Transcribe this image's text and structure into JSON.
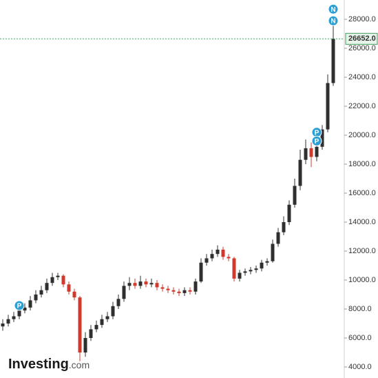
{
  "chart_data": {
    "type": "candlestick",
    "open": [
      6800,
      7000,
      7300,
      7500,
      7900,
      8100,
      8600,
      9000,
      9300,
      9800,
      10200,
      10300,
      9700,
      9200,
      8800,
      5000,
      6000,
      6600,
      6900,
      7300,
      7500,
      8200,
      8700,
      9600,
      9800,
      9600,
      9900,
      9700,
      9800,
      9500,
      9400,
      9300,
      9200,
      9100,
      9300,
      9200,
      9900,
      11200,
      11500,
      11800,
      12100,
      11600,
      11500,
      10100,
      10500,
      10600,
      10700,
      10800,
      11200,
      11300,
      12500,
      13300,
      14000,
      15200,
      16500,
      18300,
      19100,
      18500,
      19200,
      20400,
      23600
    ],
    "high": [
      7300,
      7600,
      7800,
      8200,
      8400,
      8900,
      9300,
      9600,
      10100,
      10500,
      10500,
      10400,
      9900,
      9400,
      8900,
      6400,
      6900,
      7200,
      7600,
      7800,
      8500,
      9000,
      9900,
      10200,
      10100,
      10300,
      10100,
      10100,
      10000,
      9700,
      9600,
      9500,
      9400,
      9500,
      9500,
      10100,
      11500,
      11800,
      12100,
      12400,
      12300,
      11800,
      11600,
      10700,
      10800,
      10900,
      11000,
      11400,
      11500,
      12800,
      13600,
      14400,
      15500,
      17000,
      19000,
      19700,
      19500,
      19600,
      20700,
      24200,
      27700
    ],
    "low": [
      6500,
      6800,
      7100,
      7300,
      7700,
      7900,
      8400,
      8800,
      9100,
      9600,
      10000,
      9500,
      9000,
      8600,
      4400,
      4700,
      5800,
      6400,
      6700,
      7100,
      7300,
      8000,
      8500,
      9300,
      9400,
      9400,
      9500,
      9500,
      9300,
      9200,
      9100,
      9000,
      8900,
      8900,
      9000,
      9000,
      9800,
      11000,
      11300,
      11600,
      11400,
      11300,
      9900,
      9900,
      10300,
      10400,
      10500,
      10600,
      11000,
      11200,
      12300,
      13100,
      13800,
      15000,
      16200,
      18000,
      17800,
      18200,
      19000,
      20200,
      23400
    ],
    "close": [
      7000,
      7300,
      7500,
      7900,
      8100,
      8600,
      9000,
      9300,
      9800,
      10200,
      10300,
      9700,
      9200,
      8800,
      5000,
      6000,
      6600,
      6900,
      7300,
      7500,
      8200,
      8700,
      9600,
      9800,
      9600,
      9900,
      9700,
      9800,
      9500,
      9400,
      9300,
      9200,
      9100,
      9300,
      9200,
      9900,
      11200,
      11500,
      11800,
      12100,
      11600,
      11500,
      10100,
      10500,
      10600,
      10700,
      10800,
      11200,
      11300,
      12500,
      13300,
      14000,
      15200,
      16500,
      18300,
      19100,
      18500,
      19200,
      20400,
      23600,
      26652
    ],
    "up_color": "#2f2f2f",
    "down_color": "#d0392b",
    "ylim": [
      3238,
      29333
    ],
    "yticks": [
      {
        "value": 4000,
        "label": "4000.0"
      },
      {
        "value": 6000,
        "label": "6000.0"
      },
      {
        "value": 8000,
        "label": "8000.0"
      },
      {
        "value": 10000,
        "label": "10000.0"
      },
      {
        "value": 12000,
        "label": "12000.0"
      },
      {
        "value": 14000,
        "label": "14000.0"
      },
      {
        "value": 16000,
        "label": "16000.0"
      },
      {
        "value": 18000,
        "label": "18000.0"
      },
      {
        "value": 20000,
        "label": "20000.0"
      },
      {
        "value": 22000,
        "label": "22000.0"
      },
      {
        "value": 24000,
        "label": "24000.0"
      },
      {
        "value": 26000,
        "label": "26000.0"
      },
      {
        "value": 28000,
        "label": "28000.0"
      }
    ],
    "last_price": {
      "value": 26652,
      "label": "26652.0",
      "color": "#3c9d5a"
    },
    "markers": [
      {
        "label": "P",
        "candle": 3,
        "value": 8240
      },
      {
        "label": "P",
        "candle": 57,
        "value": 20200
      },
      {
        "label": "P",
        "candle": 57,
        "value": 19600
      },
      {
        "label": "N",
        "candle": 60,
        "value": 28700
      },
      {
        "label": "N",
        "candle": 60,
        "value": 27900
      }
    ],
    "marker_color": "#2a9fd6",
    "grid": false,
    "logo": {
      "name": "Investing",
      "suffix": ".com"
    }
  }
}
